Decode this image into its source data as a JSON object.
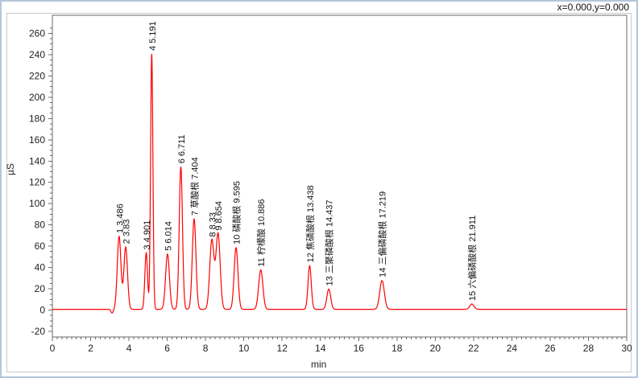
{
  "window": {
    "coordinate_readout": "x=0.000,y=0.000",
    "background": "#ffffff",
    "frame_border_color": "#b5c6da"
  },
  "chart_data": {
    "type": "line",
    "title": "",
    "xlabel": "min",
    "ylabel": "µS",
    "xlim": [
      0,
      30
    ],
    "ylim": [
      -25.3,
      277
    ],
    "x_major_ticks": [
      0,
      2,
      4,
      6,
      8,
      10,
      12,
      14,
      16,
      18,
      20,
      22,
      24,
      26,
      28,
      30
    ],
    "x_minor_step": 0.25,
    "y_major_ticks": [
      -20,
      0,
      20,
      40,
      60,
      80,
      100,
      120,
      140,
      160,
      180,
      200,
      220,
      240,
      260
    ],
    "y_minor_step": 5,
    "grid": "off",
    "legend": "none",
    "line_color": "#ff0000",
    "axis_color": "#6a6a6a",
    "tick_label_color": "#1f1f1f",
    "peak_label_color": "#111111",
    "baseline_us": 0.7,
    "pre_peak_dip": {
      "rt": 3.12,
      "depth": -3.5,
      "sigma": 0.06
    },
    "peaks": [
      {
        "num": 1,
        "name": "",
        "rt": 3.486,
        "height_us": 68.5,
        "sigma": 0.095,
        "label": "1 3.486"
      },
      {
        "num": 2,
        "name": "",
        "rt": 3.83,
        "height_us": 58.5,
        "sigma": 0.095,
        "label": "2 3.83"
      },
      {
        "num": 3,
        "name": "",
        "rt": 4.901,
        "height_us": 53,
        "sigma": 0.07,
        "label": "3 4.901"
      },
      {
        "num": 4,
        "name": "",
        "rt": 5.191,
        "height_us": 240,
        "sigma": 0.06,
        "label": "4 5.191"
      },
      {
        "num": 5,
        "name": "",
        "rt": 6.014,
        "height_us": 52,
        "sigma": 0.1,
        "label": "5 6.014"
      },
      {
        "num": 6,
        "name": "",
        "rt": 6.711,
        "height_us": 134,
        "sigma": 0.085,
        "label": "6 6.711"
      },
      {
        "num": 7,
        "name": "草酸根",
        "rt": 7.404,
        "height_us": 85,
        "sigma": 0.095,
        "label": "7 草酸根 7.404"
      },
      {
        "num": 8,
        "name": "",
        "rt": 8.33,
        "height_us": 65,
        "sigma": 0.11,
        "label": "8 8.33"
      },
      {
        "num": 9,
        "name": "",
        "rt": 8.654,
        "height_us": 71,
        "sigma": 0.11,
        "label": "9 8.654"
      },
      {
        "num": 10,
        "name": "磷酸根",
        "rt": 9.595,
        "height_us": 58,
        "sigma": 0.1,
        "label": "10 磷酸根 9.595"
      },
      {
        "num": 11,
        "name": "柠檬酸",
        "rt": 10.886,
        "height_us": 37,
        "sigma": 0.11,
        "label": "11 柠檬酸 10.886"
      },
      {
        "num": 12,
        "name": "焦磷酸根",
        "rt": 13.438,
        "height_us": 41,
        "sigma": 0.085,
        "label": "12 焦磷酸根 13.438"
      },
      {
        "num": 13,
        "name": "三聚磷酸根",
        "rt": 14.437,
        "height_us": 19,
        "sigma": 0.1,
        "label": "13 三聚磷酸根 14.437"
      },
      {
        "num": 14,
        "name": "三偏磷酸根",
        "rt": 17.219,
        "height_us": 27,
        "sigma": 0.12,
        "label": "14 三偏磷酸根 17.219"
      },
      {
        "num": 15,
        "name": "六偏磷酸根",
        "rt": 21.911,
        "height_us": 5,
        "sigma": 0.11,
        "label": "15 六偏磷酸根 21.911"
      }
    ]
  }
}
